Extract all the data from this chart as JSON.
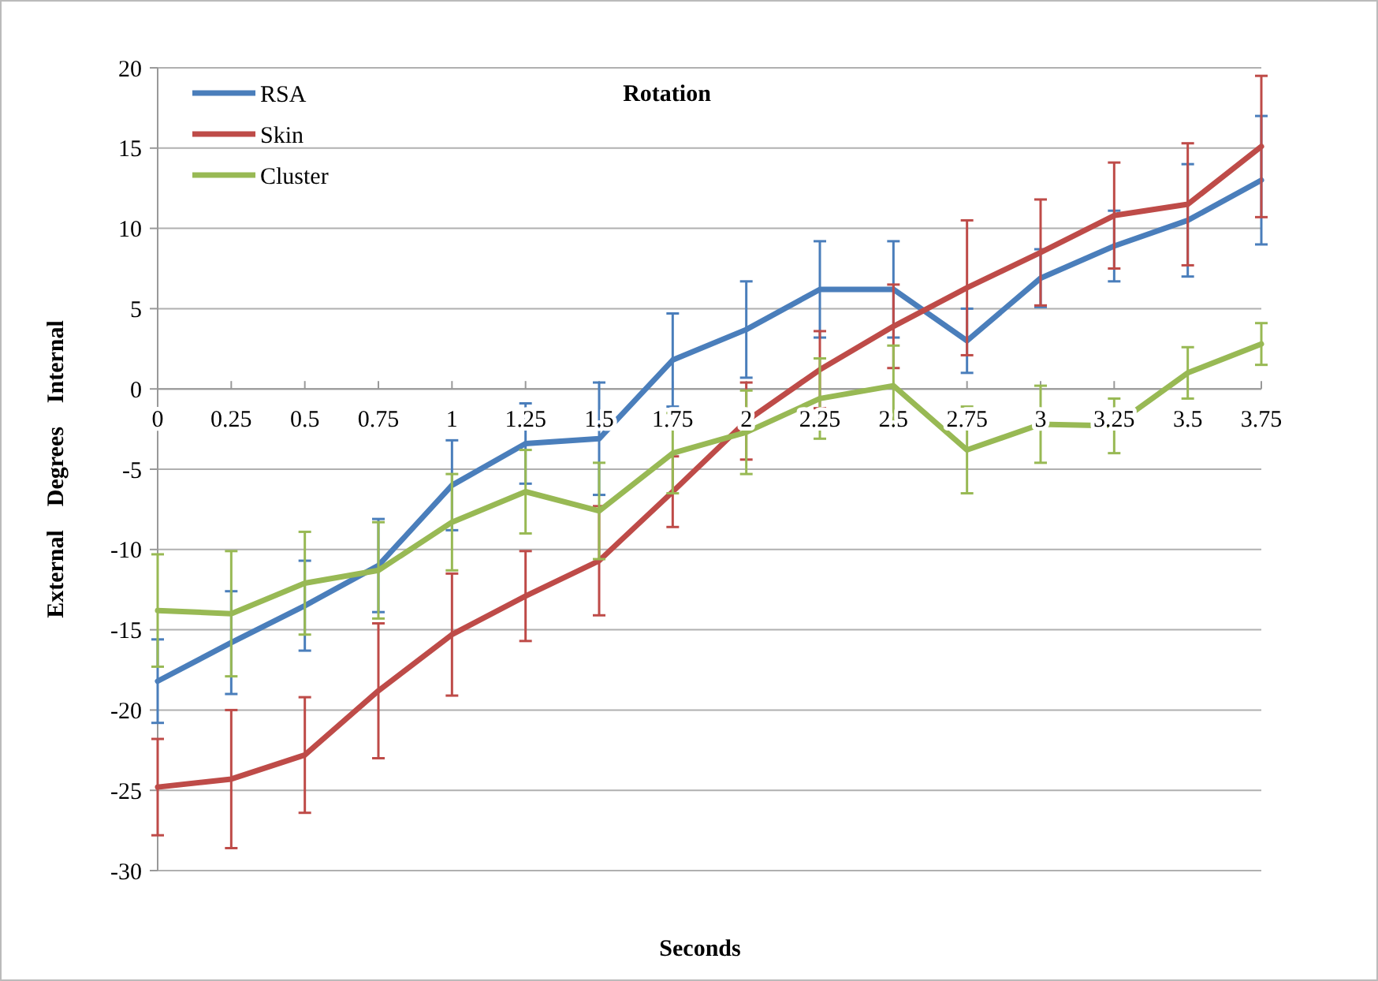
{
  "chart_data": {
    "type": "line",
    "title": "Rotation",
    "xlabel": "Seconds",
    "ylabel": "External    Degrees    Internal",
    "categories": [
      "0",
      "0.25",
      "0.5",
      "0.75",
      "1",
      "1.25",
      "1.5",
      "1.75",
      "2",
      "2.25",
      "2.5",
      "2.75",
      "3",
      "3.25",
      "3.5",
      "3.75"
    ],
    "series": [
      {
        "name": "RSA",
        "color": "#4a7ebb",
        "values": [
          -18.2,
          -15.8,
          -13.5,
          -11,
          -6,
          -3.4,
          -3.1,
          1.8,
          3.7,
          6.2,
          6.2,
          3,
          6.9,
          8.9,
          10.5,
          13
        ],
        "errors": [
          2.6,
          3.2,
          2.8,
          2.9,
          2.8,
          2.5,
          3.5,
          2.9,
          3,
          3,
          3,
          2,
          1.8,
          2.2,
          3.5,
          4
        ]
      },
      {
        "name": "Skin",
        "color": "#be4b48",
        "values": [
          -24.8,
          -24.3,
          -22.8,
          -18.8,
          -15.3,
          -12.9,
          -10.7,
          -6.4,
          -2,
          1.2,
          3.9,
          6.3,
          8.5,
          10.8,
          11.5,
          15.1
        ],
        "errors": [
          3,
          4.3,
          3.6,
          4.2,
          3.8,
          2.8,
          3.4,
          2.2,
          2.4,
          2.4,
          2.6,
          4.2,
          3.3,
          3.3,
          3.8,
          4.4
        ]
      },
      {
        "name": "Cluster",
        "color": "#98b954",
        "values": [
          -13.8,
          -14,
          -12.1,
          -11.3,
          -8.3,
          -6.4,
          -7.6,
          -4,
          -2.7,
          -0.6,
          0.2,
          -3.8,
          -2.2,
          -2.3,
          1,
          2.8
        ],
        "errors": [
          3.5,
          3.9,
          3.2,
          3,
          3,
          2.6,
          3,
          2.5,
          2.6,
          2.5,
          2.5,
          2.7,
          2.4,
          1.7,
          1.6,
          1.3
        ]
      }
    ],
    "ylim": [
      -30,
      20
    ],
    "yticks": [
      -30,
      -25,
      -20,
      -15,
      -10,
      -5,
      0,
      5,
      10,
      15,
      20
    ],
    "grid": "y",
    "legend": "top left",
    "marker": "none",
    "line_style": "solid"
  }
}
